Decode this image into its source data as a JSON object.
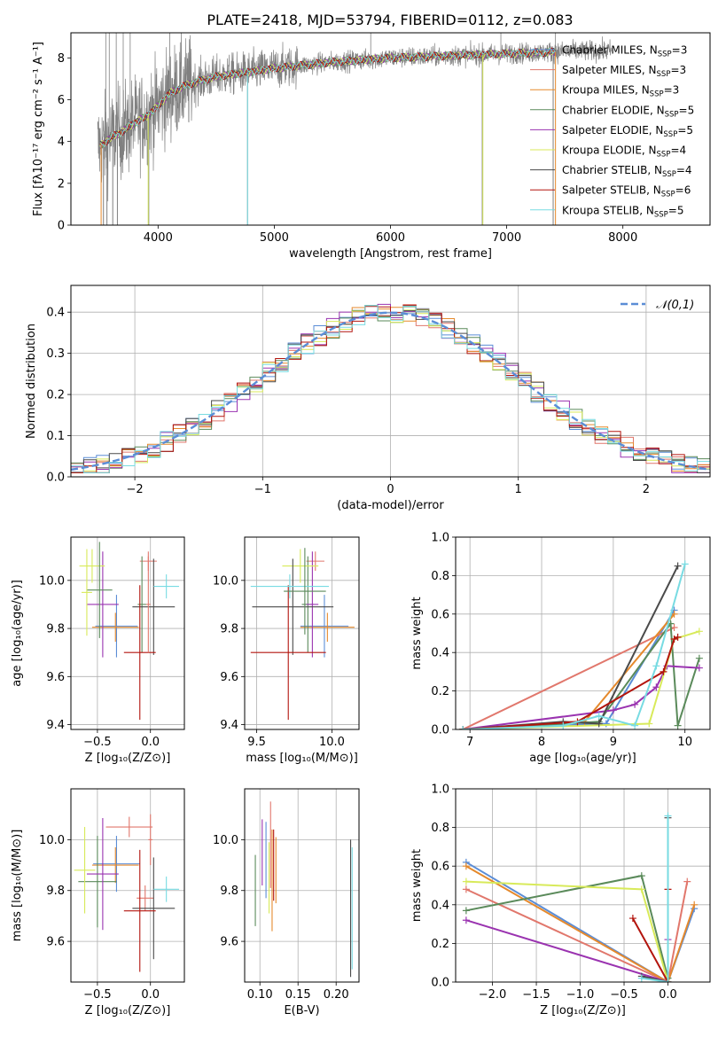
{
  "figure": {
    "title": "PLATE=2418, MJD=53794, FIBERID=0112, z=0.083"
  },
  "models": [
    {
      "name": "Chabrier MILES",
      "nssp": "=3",
      "color": "#5b8dd6"
    },
    {
      "name": "Salpeter MILES",
      "nssp": "=3",
      "color": "#e1776c"
    },
    {
      "name": "Kroupa MILES",
      "nssp": "=3",
      "color": "#e5892c"
    },
    {
      "name": "Chabrier ELODIE",
      "nssp": "=5",
      "color": "#5a8a5a"
    },
    {
      "name": "Salpeter ELODIE",
      "nssp": "=5",
      "color": "#9a33b0"
    },
    {
      "name": "Kroupa ELODIE",
      "nssp": "=4",
      "color": "#d8ea5a"
    },
    {
      "name": "Chabrier STELIB",
      "nssp": "=4",
      "color": "#4a4a4a"
    },
    {
      "name": "Salpeter STELIB",
      "nssp": "=6",
      "color": "#b3150e"
    },
    {
      "name": "Kroupa STELIB",
      "nssp": "=5",
      "color": "#78dbe2"
    }
  ],
  "nssp_subscript": "SSP",
  "chart_data": [
    {
      "id": "spectrum",
      "type": "line",
      "xlabel": "wavelength [Angstrom, rest frame]",
      "ylabel": "Flux [fλ10⁻¹⁷ erg cm⁻² s⁻¹ A⁻¹]",
      "xlim": [
        3250,
        8750
      ],
      "ylim": [
        0,
        9.2
      ],
      "xticks": [
        4000,
        5000,
        6000,
        7000,
        8000
      ],
      "yticks": [
        0,
        2,
        4,
        6,
        8
      ],
      "observed_color": "#808080",
      "continuum": {
        "x": [
          3500,
          3600,
          3700,
          3800,
          3900,
          4000,
          4100,
          4200,
          4300,
          4500,
          5000,
          5500,
          6000,
          6500,
          7000,
          7500,
          7900
        ],
        "y": [
          3.8,
          4.2,
          4.5,
          4.9,
          5.2,
          5.7,
          6.3,
          6.6,
          6.8,
          7.1,
          7.5,
          7.8,
          8.0,
          8.1,
          8.2,
          8.3,
          8.35
        ]
      },
      "spikes_down": [
        3530,
        3560,
        3610,
        3650,
        3920,
        4770,
        6790,
        7400
      ],
      "spikes_up": [
        3550,
        3580,
        3640,
        3700,
        3760,
        4100,
        5830,
        6950,
        7420
      ],
      "legend": "top-right"
    },
    {
      "id": "residuals",
      "type": "histogram",
      "xlabel": "(data-model)/error",
      "ylabel": "Normed distribution",
      "xlim": [
        -2.5,
        2.5
      ],
      "ylim": [
        0,
        0.465
      ],
      "xticks": [
        -2,
        -1,
        0,
        1,
        2
      ],
      "yticks": [
        0.0,
        0.1,
        0.2,
        0.3,
        0.4
      ],
      "gaussian": {
        "label": "𝒩(0,1)",
        "color": "#5b8dd6",
        "mean": 0,
        "sigma": 1
      },
      "bin_width": 0.1,
      "legend": "upper right"
    },
    {
      "id": "age-vs-Z",
      "type": "errorbar",
      "xlabel": "Z [log₁₀(Z/Z⊙)]",
      "ylabel": "age  [log₁₀(age/yr)]",
      "xlim": [
        -0.75,
        0.32
      ],
      "ylim": [
        9.38,
        10.18
      ],
      "xticks": [
        -0.5,
        0.0
      ],
      "yticks": [
        9.4,
        9.6,
        9.8,
        10.0
      ],
      "points": [
        {
          "x": -0.32,
          "xerr": 0.2,
          "y": 9.81,
          "yerr": 0.13,
          "model": 0
        },
        {
          "x": -0.02,
          "xerr": 0.08,
          "y": 10.08,
          "yerr": 0.04,
          "model": 1
        },
        {
          "x": -0.33,
          "xerr": 0.22,
          "y": 9.805,
          "yerr": 0.06,
          "model": 2
        },
        {
          "x": -0.08,
          "xerr": 0.04,
          "y": 9.9,
          "yerr": 0.2,
          "model": 3
        },
        {
          "x": -0.45,
          "xerr": 0.15,
          "y": 9.9,
          "yerr": 0.22,
          "model": 4
        },
        {
          "x": -0.55,
          "xerr": 0.12,
          "y": 10.06,
          "yerr": 0.07,
          "model": 5
        },
        {
          "x": 0.03,
          "xerr": 0.2,
          "y": 9.89,
          "yerr": 0.2,
          "model": 6
        },
        {
          "x": -0.1,
          "xerr": 0.15,
          "y": 9.7,
          "yerr": 0.28,
          "model": 7
        },
        {
          "x": 0.15,
          "xerr": 0.12,
          "y": 9.975,
          "yerr": 0.05,
          "model": 8
        },
        {
          "x": -0.48,
          "xerr": 0.12,
          "y": 9.96,
          "yerr": 0.2,
          "model": 3
        },
        {
          "x": -0.6,
          "xerr": 0.05,
          "y": 9.95,
          "yerr": 0.18,
          "model": 5
        },
        {
          "x": -0.02,
          "xerr": 0.02,
          "y": 9.9,
          "yerr": 0.2,
          "model": 1
        }
      ]
    },
    {
      "id": "age-vs-mass",
      "type": "errorbar",
      "xlabel": "mass [log₁₀(M/M⊙)]",
      "ylabel": "",
      "xlim": [
        9.42,
        10.18
      ],
      "ylim": [
        9.38,
        10.18
      ],
      "xticks": [
        9.5,
        10.0
      ],
      "yticks": [
        9.4,
        9.6,
        9.8,
        10.0
      ],
      "points": [
        {
          "x": 9.95,
          "xerr": 0.16,
          "y": 9.81,
          "yerr": 0.13,
          "model": 0
        },
        {
          "x": 9.89,
          "xerr": 0.06,
          "y": 10.08,
          "yerr": 0.04,
          "model": 1
        },
        {
          "x": 9.97,
          "xerr": 0.18,
          "y": 9.805,
          "yerr": 0.06,
          "model": 2
        },
        {
          "x": 9.84,
          "xerr": 0.04,
          "y": 9.9,
          "yerr": 0.2,
          "model": 3
        },
        {
          "x": 9.87,
          "xerr": 0.04,
          "y": 9.9,
          "yerr": 0.22,
          "model": 4
        },
        {
          "x": 9.79,
          "xerr": 0.12,
          "y": 10.06,
          "yerr": 0.07,
          "model": 5
        },
        {
          "x": 9.74,
          "xerr": 0.27,
          "y": 9.89,
          "yerr": 0.2,
          "model": 6
        },
        {
          "x": 9.71,
          "xerr": 0.25,
          "y": 9.7,
          "yerr": 0.28,
          "model": 7
        },
        {
          "x": 9.72,
          "xerr": 0.26,
          "y": 9.975,
          "yerr": 0.05,
          "model": 8
        },
        {
          "x": 9.82,
          "xerr": 0.14,
          "y": 9.955,
          "yerr": 0.18,
          "model": 3
        }
      ]
    },
    {
      "id": "massweight-vs-age",
      "type": "line",
      "xlabel": "age  [log₁₀(age/yr)]",
      "ylabel": "mass weight",
      "xlim": [
        6.8,
        10.35
      ],
      "ylim": [
        0,
        1.0
      ],
      "xticks": [
        7,
        8,
        9,
        10
      ],
      "yticks": [
        0.0,
        0.2,
        0.4,
        0.6,
        0.8,
        1.0
      ],
      "series": [
        {
          "model": 0,
          "x": [
            6.9,
            8.9,
            9.85
          ],
          "y": [
            0.0,
            0.03,
            0.62
          ]
        },
        {
          "model": 1,
          "x": [
            6.9,
            9.85
          ],
          "y": [
            0.0,
            0.53
          ]
        },
        {
          "model": 2,
          "x": [
            6.9,
            8.6,
            9.85
          ],
          "y": [
            0.0,
            0.04,
            0.6
          ]
        },
        {
          "model": 3,
          "x": [
            6.9,
            8.8,
            9.8,
            9.9,
            10.2
          ],
          "y": [
            0.0,
            0.04,
            0.55,
            0.02,
            0.37
          ]
        },
        {
          "model": 4,
          "x": [
            6.9,
            9.0,
            9.3,
            9.6,
            9.75,
            10.2
          ],
          "y": [
            0.0,
            0.1,
            0.13,
            0.22,
            0.33,
            0.32
          ]
        },
        {
          "model": 5,
          "x": [
            6.9,
            9.5,
            9.85,
            10.2
          ],
          "y": [
            0.0,
            0.03,
            0.47,
            0.51
          ]
        },
        {
          "model": 6,
          "x": [
            6.9,
            8.3,
            8.8,
            9.9
          ],
          "y": [
            0.0,
            0.04,
            0.03,
            0.85
          ]
        },
        {
          "model": 7,
          "x": [
            6.9,
            8.5,
            9.7,
            9.85,
            9.9
          ],
          "y": [
            0.0,
            0.04,
            0.3,
            0.47,
            0.48
          ]
        },
        {
          "model": 8,
          "x": [
            6.9,
            8.3,
            8.8,
            9.3,
            9.6,
            10.0
          ],
          "y": [
            0.0,
            0.02,
            0.07,
            0.02,
            0.33,
            0.86
          ]
        }
      ]
    },
    {
      "id": "mass-vs-Z",
      "type": "errorbar",
      "xlabel": "Z [log₁₀(Z/Z⊙)]",
      "ylabel": "mass [log₁₀(M/M⊙)]",
      "xlim": [
        -0.75,
        0.32
      ],
      "ylim": [
        9.44,
        10.2
      ],
      "xticks": [
        -0.5,
        0.0
      ],
      "yticks": [
        9.6,
        9.8,
        10.0
      ],
      "points": [
        {
          "x": -0.32,
          "xerr": 0.22,
          "y": 9.905,
          "yerr": 0.11,
          "model": 0
        },
        {
          "x": -0.05,
          "xerr": 0.08,
          "y": 9.77,
          "yerr": 0.05,
          "model": 1
        },
        {
          "x": -0.33,
          "xerr": 0.22,
          "y": 9.9,
          "yerr": 0.07,
          "model": 2
        },
        {
          "x": -0.5,
          "xerr": 0.18,
          "y": 9.835,
          "yerr": 0.18,
          "model": 3
        },
        {
          "x": -0.45,
          "xerr": 0.15,
          "y": 9.865,
          "yerr": 0.22,
          "model": 4
        },
        {
          "x": -0.62,
          "xerr": 0.1,
          "y": 9.88,
          "yerr": 0.17,
          "model": 5
        },
        {
          "x": 0.03,
          "xerr": 0.2,
          "y": 9.73,
          "yerr": 0.2,
          "model": 6
        },
        {
          "x": -0.1,
          "xerr": 0.15,
          "y": 9.72,
          "yerr": 0.24,
          "model": 7
        },
        {
          "x": 0.15,
          "xerr": 0.12,
          "y": 9.805,
          "yerr": 0.05,
          "model": 8
        },
        {
          "x": -0.2,
          "xerr": 0.22,
          "y": 10.05,
          "yerr": 0.04,
          "model": 1
        },
        {
          "x": 0.0,
          "xerr": 0.02,
          "y": 10.0,
          "yerr": 0.1,
          "model": 1
        }
      ]
    },
    {
      "id": "mass-vs-EBV",
      "type": "errorbar",
      "xlabel": "E(B-V)",
      "ylabel": "",
      "xlim": [
        0.08,
        0.23
      ],
      "ylim": [
        9.44,
        10.2
      ],
      "xticks": [
        0.1,
        0.15,
        0.2
      ],
      "yticks": [
        9.6,
        9.8,
        10.0
      ],
      "points": [
        {
          "x": 0.094,
          "xerr": 0,
          "y": 9.8,
          "yerr": 0.14,
          "model": 3
        },
        {
          "x": 0.103,
          "xerr": 0,
          "y": 9.95,
          "yerr": 0.13,
          "model": 4
        },
        {
          "x": 0.108,
          "xerr": 0,
          "y": 9.92,
          "yerr": 0.15,
          "model": 0
        },
        {
          "x": 0.112,
          "xerr": 0,
          "y": 9.85,
          "yerr": 0.14,
          "model": 5
        },
        {
          "x": 0.114,
          "xerr": 0,
          "y": 9.98,
          "yerr": 0.17,
          "model": 1
        },
        {
          "x": 0.116,
          "xerr": 0,
          "y": 9.84,
          "yerr": 0.2,
          "model": 2
        },
        {
          "x": 0.118,
          "xerr": 0,
          "y": 9.9,
          "yerr": 0.14,
          "model": 7
        },
        {
          "x": 0.121,
          "xerr": 0,
          "y": 9.88,
          "yerr": 0.13,
          "model": 2
        },
        {
          "x": 0.219,
          "xerr": 0,
          "y": 9.73,
          "yerr": 0.27,
          "model": 6
        },
        {
          "x": 0.221,
          "xerr": 0,
          "y": 9.73,
          "yerr": 0.24,
          "model": 8
        }
      ]
    },
    {
      "id": "massweight-vs-Z",
      "type": "line",
      "xlabel": "Z [log₁₀(Z/Z⊙)]",
      "ylabel": "mass weight",
      "xlim": [
        -2.42,
        0.48
      ],
      "ylim": [
        0,
        1.0
      ],
      "xticks": [
        -2.0,
        -1.5,
        -1.0,
        -0.5,
        0.0
      ],
      "yticks": [
        0.0,
        0.2,
        0.4,
        0.6,
        0.8,
        1.0
      ],
      "series": [
        {
          "model": 0,
          "x": [
            -2.3,
            0.0,
            0.3
          ],
          "y": [
            0.62,
            0.0,
            0.38
          ]
        },
        {
          "model": 1,
          "x": [
            -2.3,
            0.0,
            0.22
          ],
          "y": [
            0.48,
            0.0,
            0.52
          ]
        },
        {
          "model": 2,
          "x": [
            -2.3,
            0.0,
            0.3
          ],
          "y": [
            0.6,
            0.0,
            0.4
          ]
        },
        {
          "model": 3,
          "x": [
            -2.3,
            -0.3,
            0.0
          ],
          "y": [
            0.37,
            0.55,
            0.02
          ]
        },
        {
          "model": 4,
          "x": [
            -2.3,
            0.0,
            0.0
          ],
          "y": [
            0.32,
            0.0,
            0.22
          ]
        },
        {
          "model": 5,
          "x": [
            -2.3,
            -0.3,
            0.0
          ],
          "y": [
            0.52,
            0.48,
            0.0
          ]
        },
        {
          "model": 6,
          "x": [
            -0.3,
            0.0,
            0.0
          ],
          "y": [
            0.03,
            0.0,
            0.85
          ]
        },
        {
          "model": 7,
          "x": [
            -0.4,
            0.0,
            0.0
          ],
          "y": [
            0.33,
            0.0,
            0.48
          ]
        },
        {
          "model": 8,
          "x": [
            -0.3,
            0.0,
            0.0
          ],
          "y": [
            0.02,
            0.0,
            0.86
          ]
        }
      ]
    }
  ]
}
